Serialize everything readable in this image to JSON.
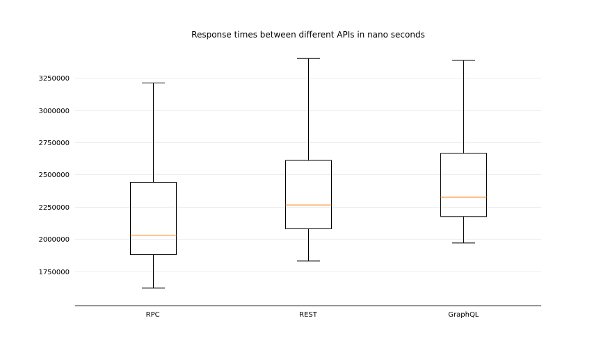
{
  "chart_data": {
    "type": "box",
    "title": "Response times between different APIs in nano seconds",
    "xlabel": "",
    "ylabel": "",
    "categories": [
      "RPC",
      "REST",
      "GraphQL"
    ],
    "series": [
      {
        "category": "RPC",
        "min": 1620000,
        "q1": 1880000,
        "median": 2030000,
        "q3": 2440000,
        "max": 3210000
      },
      {
        "category": "REST",
        "min": 1830000,
        "q1": 2080000,
        "median": 2265000,
        "q3": 2610000,
        "max": 3400000
      },
      {
        "category": "GraphQL",
        "min": 1970000,
        "q1": 2175000,
        "median": 2325000,
        "q3": 2665000,
        "max": 3385000
      }
    ],
    "yticks": [
      1750000,
      2000000,
      2250000,
      2500000,
      2750000,
      3000000,
      3250000
    ],
    "ytick_labels": [
      "1750000",
      "2000000",
      "2250000",
      "2500000",
      "2750000",
      "3000000",
      "3250000"
    ],
    "ylim": [
      1485000,
      3525000
    ],
    "grid": "horizontal",
    "colors": {
      "box": "#000000",
      "median": "#ff7f0e",
      "grid": "#ebebeb",
      "axis": "#000000"
    }
  }
}
